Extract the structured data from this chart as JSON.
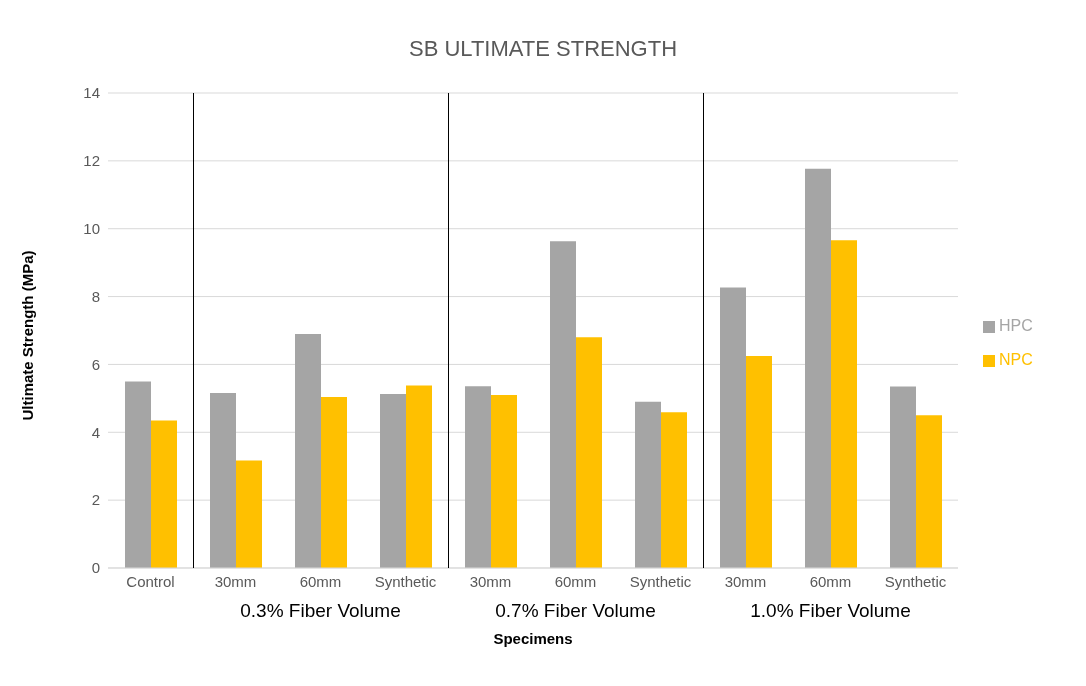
{
  "chart_data": {
    "type": "bar",
    "title": "SB ULTIMATE STRENGTH",
    "xlabel": "Specimens",
    "ylabel": "Ultimate Strength (MPa)",
    "categories": [
      "Control",
      "30mm",
      "60mm",
      "Synthetic",
      "30mm",
      "60mm",
      "Synthetic",
      "30mm",
      "60mm",
      "Synthetic"
    ],
    "series": [
      {
        "name": "HPC",
        "color": "#a5a5a5",
        "values": [
          5.5,
          5.16,
          6.9,
          5.13,
          5.36,
          9.63,
          4.9,
          8.27,
          11.77,
          5.35
        ]
      },
      {
        "name": "NPC",
        "color": "#ffc000",
        "values": [
          4.35,
          3.17,
          5.04,
          5.38,
          5.1,
          6.8,
          4.59,
          6.25,
          9.66,
          4.5
        ]
      }
    ],
    "ylim": [
      0,
      14
    ],
    "yticks": [
      0,
      2,
      4,
      6,
      8,
      10,
      12,
      14
    ],
    "grid": "y",
    "legend": "right",
    "annotations": [
      "0.3% Fiber Volume",
      "0.7% Fiber Volume",
      "1.0% Fiber Volume"
    ]
  }
}
